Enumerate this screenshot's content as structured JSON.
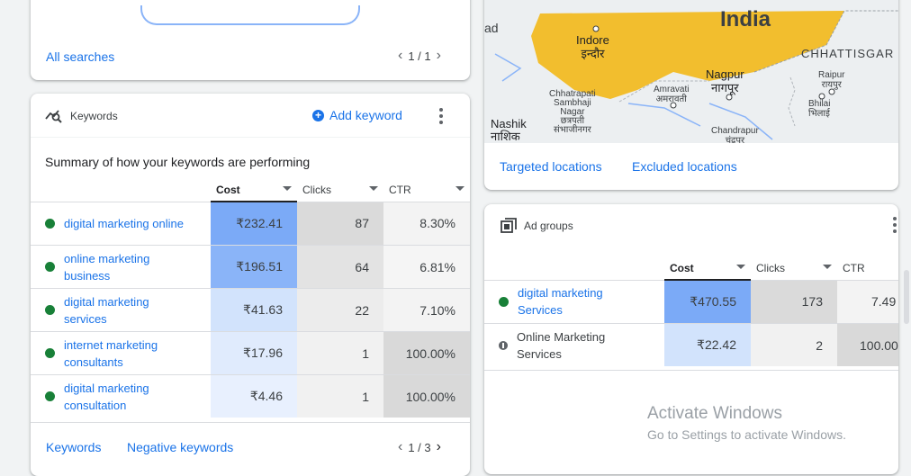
{
  "colors": {
    "link": "#1a73e8",
    "status_enabled": "#188038",
    "status_paused": "#5f6368",
    "heat_strong": "#7baaf7",
    "heat_light": "#d2e3fc",
    "gray_strong": "#d9d9d9",
    "gray_light": "#ececec",
    "map_region": "#f2be2e"
  },
  "searches_card": {
    "link": "All searches",
    "pager": "1 / 1"
  },
  "keywords_card": {
    "title": "Keywords",
    "icon": "keywords-chart-icon",
    "add_label": "Add keyword",
    "summary": "Summary of how your keywords are performing",
    "columns": {
      "cost": "Cost",
      "clicks": "Clicks",
      "ctr": "CTR"
    },
    "rows": [
      {
        "name": "digital marketing online",
        "cost": "₹232.41",
        "clicks": "87",
        "ctr": "8.30%",
        "status": "enabled"
      },
      {
        "name": "online marketing business",
        "cost": "₹196.51",
        "clicks": "64",
        "ctr": "6.81%",
        "status": "enabled"
      },
      {
        "name": "digital marketing services",
        "cost": "₹41.63",
        "clicks": "22",
        "ctr": "7.10%",
        "status": "enabled"
      },
      {
        "name": "internet marketing consultants",
        "cost": "₹17.96",
        "clicks": "1",
        "ctr": "100.00%",
        "status": "enabled"
      },
      {
        "name": "digital marketing consultation",
        "cost": "₹4.46",
        "clicks": "1",
        "ctr": "100.00%",
        "status": "enabled"
      }
    ],
    "footer_link1": "Keywords",
    "footer_link2": "Negative keywords",
    "pager": "1 / 3"
  },
  "locations_card": {
    "map_labels": {
      "ad": "ad",
      "india": "India",
      "indore": "Indore",
      "indore_hi": "इन्दौर",
      "nagpur": "Nagpur",
      "nagpur_hi": "नागपूर",
      "chhattisgarh": "CHHATTISGAR",
      "raipur": "Raipur",
      "raipur_hi": "रायपुर",
      "bhilai": "Bhilai",
      "bhilai_hi": "भिलाई",
      "amravati": "Amravati",
      "amravati_hi": "अमरावती",
      "chhatrapati1": "Chhatrapati",
      "chhatrapati2": "Sambhaji",
      "chhatrapati3": "Nagar",
      "chhatrapati_hi1": "छत्रपती",
      "chhatrapati_hi2": "संभाजीनगर",
      "nashik": "Nashik",
      "nashik_hi": "नाशिक",
      "chandrapur": "Chandrapur",
      "chandrapur_hi": "चंद्रपूर"
    },
    "tab_targeted": "Targeted locations",
    "tab_excluded": "Excluded locations"
  },
  "adgroups_card": {
    "title": "Ad groups",
    "icon": "ad-groups-icon",
    "columns": {
      "cost": "Cost",
      "clicks": "Clicks",
      "ctr": "CTR"
    },
    "rows": [
      {
        "name": "digital marketing Services",
        "cost": "₹470.55",
        "clicks": "173",
        "ctr": "7.49",
        "status": "enabled"
      },
      {
        "name": "Online Marketing Services",
        "cost": "₹22.42",
        "clicks": "2",
        "ctr": "100.00",
        "status": "paused"
      }
    ]
  },
  "watermark": {
    "line1": "Activate Windows",
    "line2": "Go to Settings to activate Windows."
  }
}
